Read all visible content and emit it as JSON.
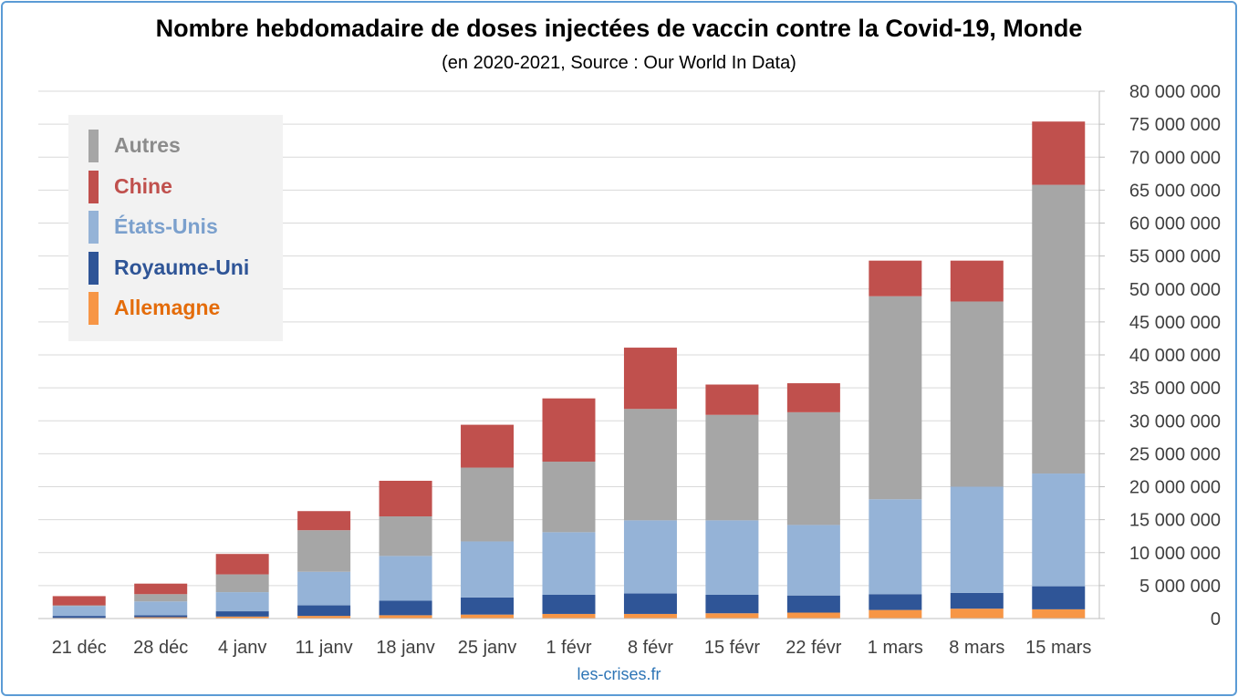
{
  "chart_data": {
    "type": "bar",
    "stacked": true,
    "title": "Nombre hebdomadaire de doses injectées de vaccin contre la Covid-19, Monde",
    "subtitle": "(en 2020-2021, Source : Our World In Data)",
    "source_note": "les-crises.fr",
    "categories": [
      "21 déc",
      "28 déc",
      "4 janv",
      "11 janv",
      "18 janv",
      "25 janv",
      "1 févr",
      "8 févr",
      "15 févr",
      "22 févr",
      "1 mars",
      "8 mars",
      "15 mars"
    ],
    "series": [
      {
        "name": "Allemagne",
        "color": "#f79646",
        "label_color": "#e46c0a",
        "values": [
          100000,
          200000,
          300000,
          400000,
          500000,
          600000,
          700000,
          700000,
          800000,
          900000,
          1300000,
          1500000,
          1400000
        ]
      },
      {
        "name": "Royaume-Uni",
        "color": "#2f5597",
        "label_color": "#2f5597",
        "values": [
          300000,
          300000,
          800000,
          1600000,
          2200000,
          2600000,
          2900000,
          3100000,
          2800000,
          2600000,
          2400000,
          2400000,
          3500000
        ]
      },
      {
        "name": "États-Unis",
        "color": "#95b3d7",
        "label_color": "#7ba0cd",
        "values": [
          1500000,
          2100000,
          2900000,
          5100000,
          6800000,
          8500000,
          9500000,
          11100000,
          11300000,
          10700000,
          14400000,
          16100000,
          17100000
        ]
      },
      {
        "name": "Autres",
        "color": "#a6a6a6",
        "label_color": "#8c8c8c",
        "values": [
          100000,
          1100000,
          2700000,
          6300000,
          6000000,
          11200000,
          10700000,
          16900000,
          16000000,
          17100000,
          30800000,
          28100000,
          43800000
        ]
      },
      {
        "name": "Chine",
        "color": "#c0504d",
        "label_color": "#c0504d",
        "values": [
          1400000,
          1600000,
          3100000,
          2900000,
          5400000,
          6500000,
          9600000,
          9300000,
          4600000,
          4400000,
          5400000,
          6200000,
          9600000
        ]
      }
    ],
    "legend_order": [
      "Autres",
      "Chine",
      "États-Unis",
      "Royaume-Uni",
      "Allemagne"
    ],
    "legend_position": "top-left",
    "ylim": [
      0,
      80000000
    ],
    "y_ticks": [
      "0",
      "5 000 000",
      "10 000 000",
      "15 000 000",
      "20 000 000",
      "25 000 000",
      "30 000 000",
      "35 000 000",
      "40 000 000",
      "45 000 000",
      "50 000 000",
      "55 000 000",
      "60 000 000",
      "65 000 000",
      "70 000 000",
      "75 000 000",
      "80 000 000"
    ],
    "y_tick_values": [
      0,
      5000000,
      10000000,
      15000000,
      20000000,
      25000000,
      30000000,
      35000000,
      40000000,
      45000000,
      50000000,
      55000000,
      60000000,
      65000000,
      70000000,
      75000000,
      80000000
    ],
    "y_axis_side": "right",
    "grid": true
  }
}
